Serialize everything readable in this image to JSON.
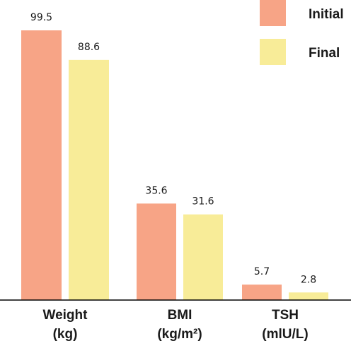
{
  "chart_data": {
    "type": "bar",
    "title": "",
    "xlabel": "",
    "ylabel": "",
    "ylim": [
      0,
      105
    ],
    "grid": false,
    "legend_position": "top-right",
    "categories": [
      [
        "Weight",
        "(kg)"
      ],
      [
        "BMI",
        "(kg/m²)"
      ],
      [
        "TSH",
        "(mlU/L)"
      ]
    ],
    "series": [
      {
        "name": "Initial",
        "color": "#f7a486",
        "values": [
          99.5,
          35.6,
          5.7
        ],
        "labels": [
          "99.5",
          "35.6",
          "5.7"
        ]
      },
      {
        "name": "Final",
        "color": "#f8ec98",
        "values": [
          88.6,
          31.6,
          2.8
        ],
        "labels": [
          "88.6",
          "31.6",
          "2.8"
        ]
      }
    ]
  }
}
